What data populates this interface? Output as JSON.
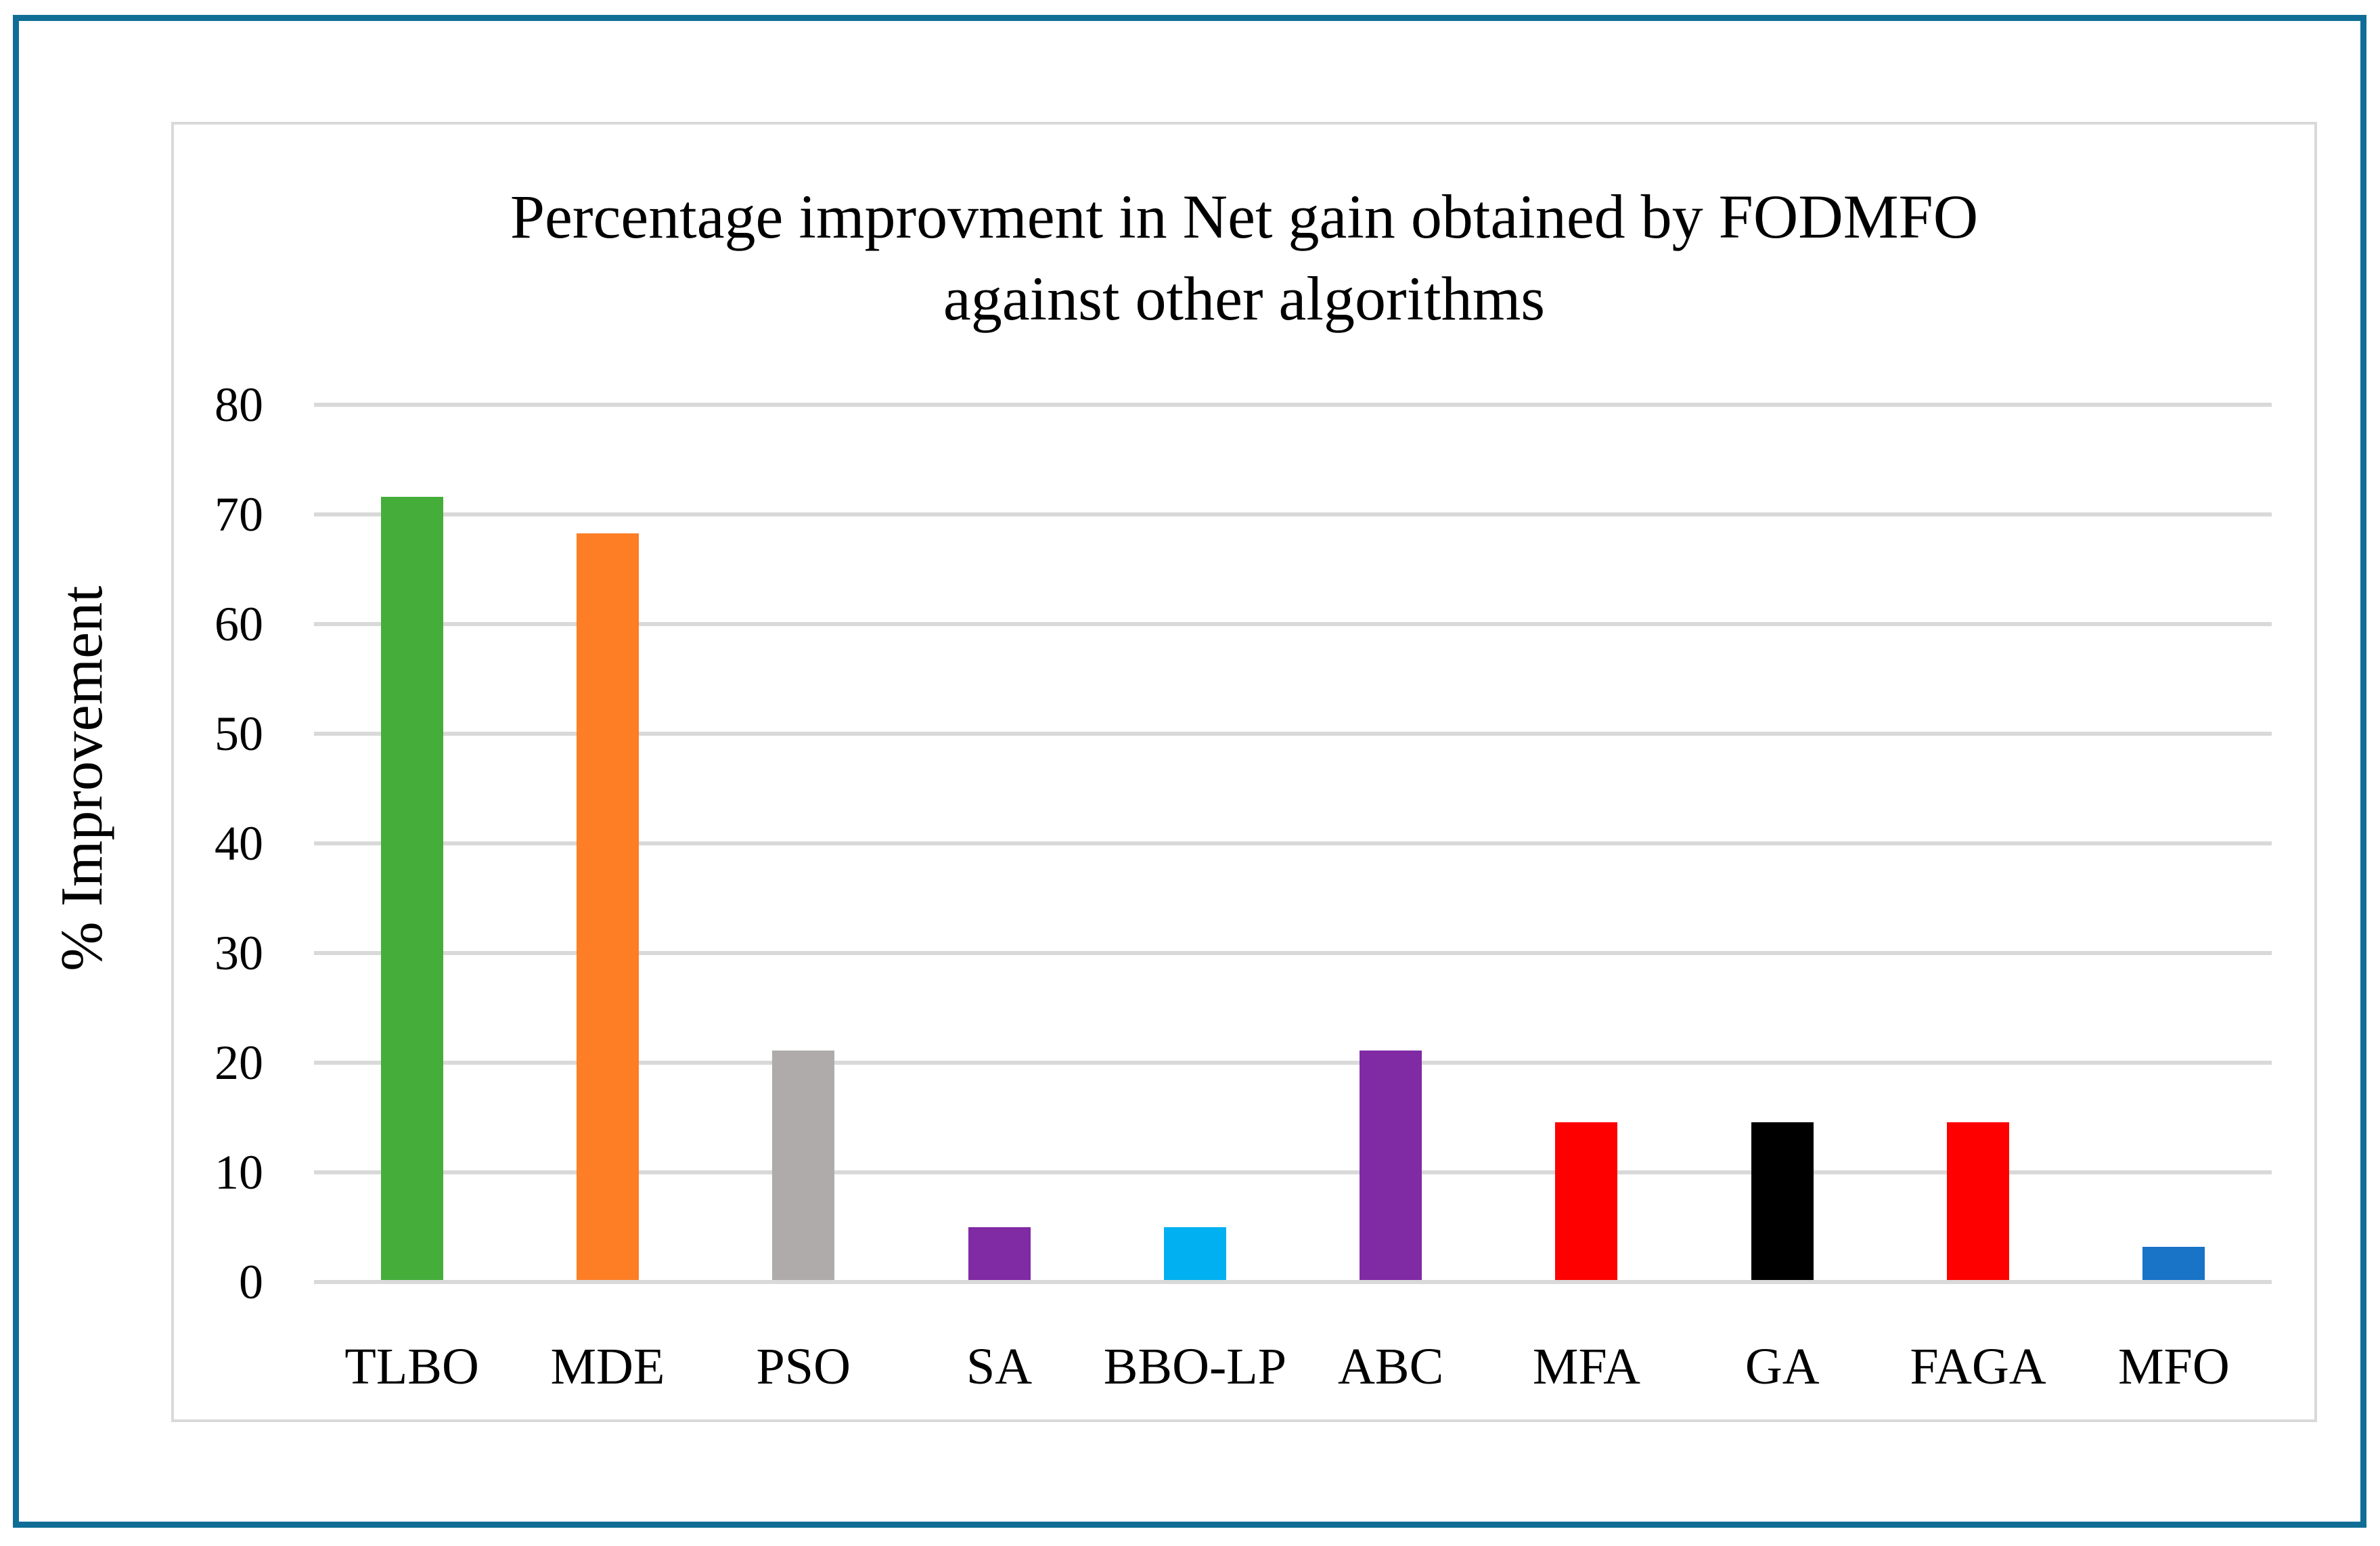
{
  "figure": {
    "frame_color": "#106E96",
    "panel_border_color": "#D9D9D9",
    "background": "#ffffff",
    "text_color": "#000000"
  },
  "chart_data": {
    "type": "bar",
    "title_line1": "Percentage improvment in Net gain obtained by FODMFO",
    "title_line2": "against other algorithms",
    "ylabel": "% Improvement",
    "xlabel": "",
    "categories": [
      "TLBO",
      "MDE",
      "PSO",
      "SA",
      "BBO-LP",
      "ABC",
      "MFA",
      "GA",
      "FAGA",
      "MFO"
    ],
    "values": [
      71.4,
      68.1,
      20.9,
      4.8,
      4.8,
      20.9,
      14.4,
      14.4,
      14.4,
      3.0
    ],
    "bar_colors": [
      "#45AE3B",
      "#FD7E25",
      "#AFABAB",
      "#802AA4",
      "#00B0F0",
      "#802AA4",
      "#FF0000",
      "#000000",
      "#FF0000",
      "#1973C7"
    ],
    "ylim": [
      0,
      80
    ],
    "yticks": [
      0,
      10,
      20,
      30,
      40,
      50,
      60,
      70,
      80
    ],
    "grid": true,
    "gridline_color": "#D9D9D9",
    "legend": "none"
  }
}
